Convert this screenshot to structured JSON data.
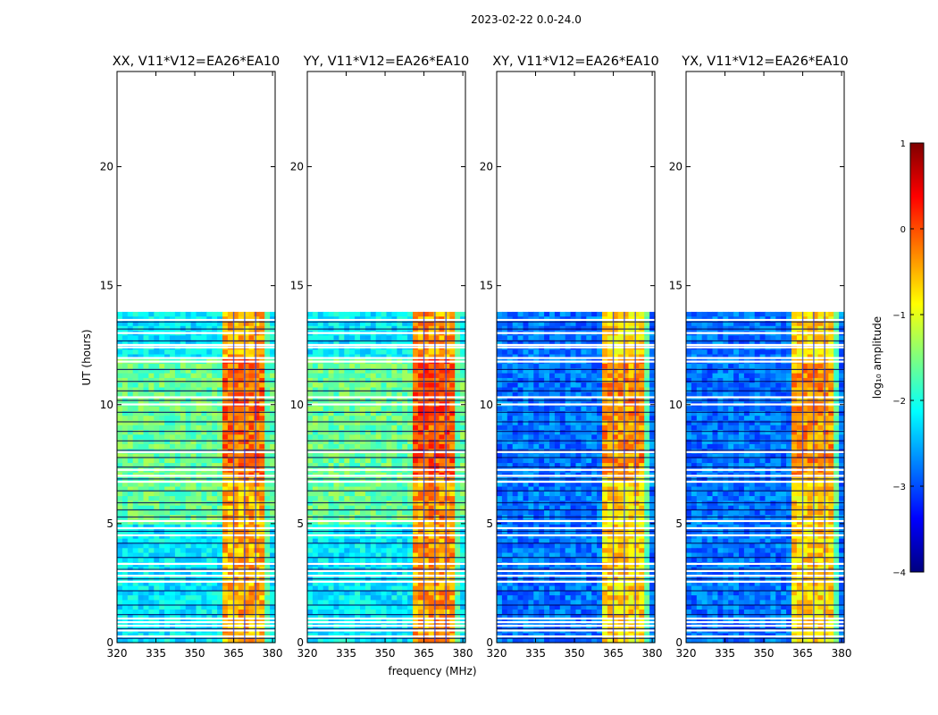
{
  "figure": {
    "suptitle": "2023-02-22 0.0-24.0",
    "xlabel": "frequency (MHz)",
    "ylabel": "UT (hours)"
  },
  "colorbar": {
    "label": "log₁₀ amplitude",
    "ticks": [
      1,
      0,
      -1,
      -2,
      -3,
      -4
    ],
    "tick_labels": [
      "1",
      "0",
      "−1",
      "−2",
      "−3",
      "−4"
    ],
    "range": [
      -4,
      1
    ],
    "colormap": [
      "#00007f",
      "#0000ff",
      "#007fff",
      "#00ffff",
      "#7fff7f",
      "#ffff00",
      "#ff7f00",
      "#ff0000",
      "#7f0000"
    ]
  },
  "chart_data": [
    {
      "type": "heatmap",
      "title": "XX, V11*V12=EA26*EA10",
      "xlabel": "",
      "ylabel": "UT (hours)",
      "xlim": [
        320,
        381
      ],
      "ylim": [
        0,
        24
      ],
      "xticks": [
        320,
        335,
        350,
        365,
        380
      ],
      "yticks": [
        0,
        5,
        10,
        15,
        20
      ],
      "data_extent_hours": [
        0,
        13.9
      ],
      "bright_band_mhz": [
        361,
        378
      ],
      "background_level": -2.2,
      "band_level": -0.5
    },
    {
      "type": "heatmap",
      "title": "YY, V11*V12=EA26*EA10",
      "xlabel": "frequency (MHz)",
      "ylabel": "",
      "xlim": [
        320,
        381
      ],
      "ylim": [
        0,
        24
      ],
      "xticks": [
        320,
        335,
        350,
        365,
        380
      ],
      "yticks": [
        0,
        5,
        10,
        15,
        20
      ],
      "data_extent_hours": [
        0,
        13.9
      ],
      "bright_band_mhz": [
        361,
        378
      ],
      "background_level": -2.2,
      "band_level": -0.4
    },
    {
      "type": "heatmap",
      "title": "XY, V11*V12=EA26*EA10",
      "xlabel": "",
      "ylabel": "",
      "xlim": [
        320,
        381
      ],
      "ylim": [
        0,
        24
      ],
      "xticks": [
        320,
        335,
        350,
        365,
        380
      ],
      "yticks": [
        0,
        5,
        10,
        15,
        20
      ],
      "data_extent_hours": [
        0,
        13.9
      ],
      "bright_band_mhz": [
        361,
        378
      ],
      "background_level": -2.8,
      "band_level": -0.7
    },
    {
      "type": "heatmap",
      "title": "YX, V11*V12=EA26*EA10",
      "xlabel": "",
      "ylabel": "",
      "xlim": [
        320,
        381
      ],
      "ylim": [
        0,
        24
      ],
      "xticks": [
        320,
        335,
        350,
        365,
        380
      ],
      "yticks": [
        0,
        5,
        10,
        15,
        20
      ],
      "data_extent_hours": [
        0,
        13.9
      ],
      "bright_band_mhz": [
        361,
        378
      ],
      "background_level": -2.8,
      "band_level": -0.7
    }
  ]
}
